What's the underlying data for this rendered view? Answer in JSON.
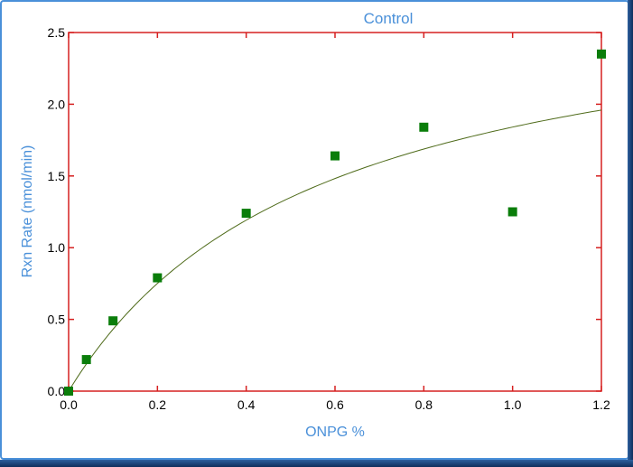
{
  "chart_data": {
    "type": "scatter",
    "title": "Control",
    "xlabel": "ONPG %",
    "ylabel": "Rxn Rate (nmol/min)",
    "xlim": [
      0,
      1.2
    ],
    "ylim": [
      0,
      2.5
    ],
    "xticks": [
      "0.0",
      "0.2",
      "0.4",
      "0.6",
      "0.8",
      "1.0",
      "1.2"
    ],
    "yticks": [
      "0.0",
      "0.5",
      "1.0",
      "1.5",
      "2.0",
      "2.5"
    ],
    "grid": false,
    "series": [
      {
        "x": [
          0,
          0.04,
          0.1,
          0.2,
          0.4,
          0.6,
          0.8,
          1.0,
          1.2
        ],
        "y": [
          0.0,
          0.22,
          0.49,
          0.79,
          1.24,
          1.64,
          1.84,
          1.25,
          2.35
        ]
      }
    ],
    "fit_curve": {
      "model": "michaelis-menten",
      "vmax": 2.89,
      "km": 0.57
    },
    "colors": {
      "frame": "#d62020",
      "marker": "#0a7d0a",
      "fit_line": "#4f6b1a",
      "text_accent": "#4a90d9"
    }
  }
}
